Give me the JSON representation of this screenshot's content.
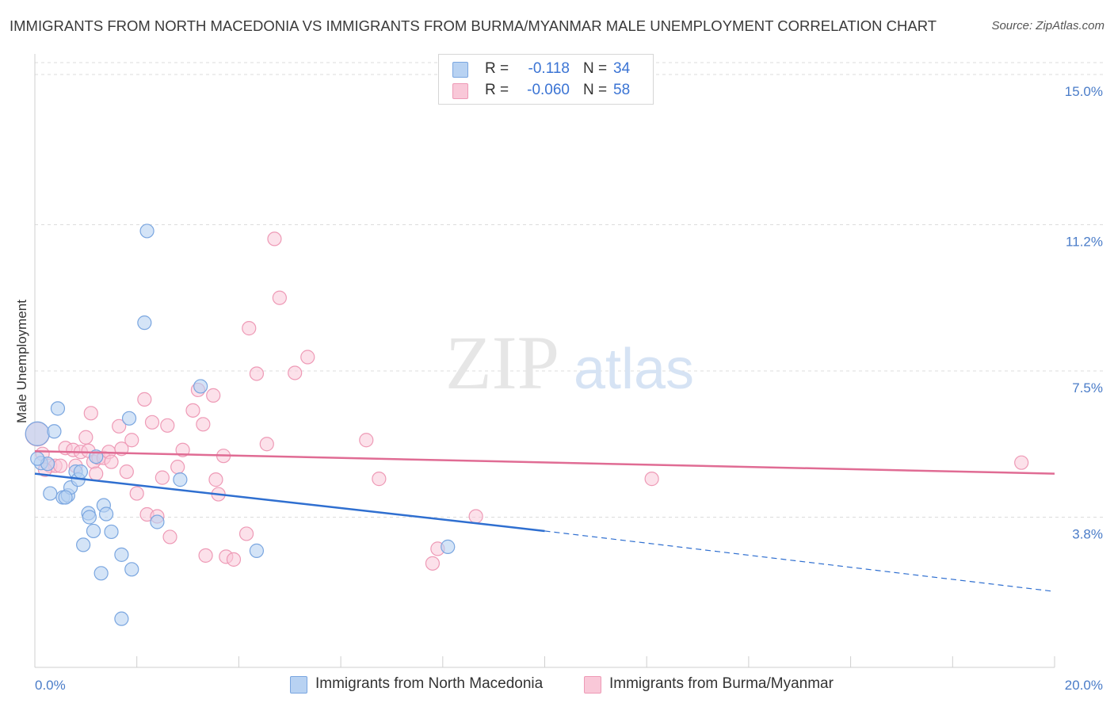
{
  "title": "IMMIGRANTS FROM NORTH MACEDONIA VS IMMIGRANTS FROM BURMA/MYANMAR MALE UNEMPLOYMENT CORRELATION CHART",
  "source": "Source: ZipAtlas.com",
  "watermark": {
    "zip": "ZIP",
    "atlas": "atlas"
  },
  "colors": {
    "blue_fill": "#b8d2f2",
    "blue_stroke": "#7aa6e0",
    "blue_line": "#2f6fd0",
    "pink_fill": "#f9c8d8",
    "pink_stroke": "#ee9ab6",
    "pink_line": "#e06c94",
    "grid": "#dcdcdc",
    "tick_text": "#4a7cc8"
  },
  "legend": {
    "rows": [
      {
        "r_label": "R =",
        "r_value": "-0.118",
        "n_label": "N =",
        "n_value": "34",
        "color": "#b8d2f2",
        "border": "#7aa6e0"
      },
      {
        "r_label": "R =",
        "r_value": "-0.060",
        "n_label": "N =",
        "n_value": "58",
        "color": "#f9c8d8",
        "border": "#ee9ab6"
      }
    ]
  },
  "bottom_legend": [
    {
      "label": "Immigrants from North Macedonia",
      "color": "#b8d2f2",
      "border": "#7aa6e0"
    },
    {
      "label": "Immigrants from Burma/Myanmar",
      "color": "#f9c8d8",
      "border": "#ee9ab6"
    }
  ],
  "chart_data": {
    "type": "scatter",
    "title": "IMMIGRANTS FROM NORTH MACEDONIA VS IMMIGRANTS FROM BURMA/MYANMAR MALE UNEMPLOYMENT CORRELATION CHART",
    "xlabel": "",
    "ylabel": "Male Unemployment",
    "xlim": [
      0,
      20
    ],
    "ylim": [
      0,
      15.38
    ],
    "x_tick_labels": {
      "min": "0.0%",
      "max": "20.0%"
    },
    "y_ticks": [
      {
        "value": 3.8,
        "label": "3.8%"
      },
      {
        "value": 7.5,
        "label": "7.5%"
      },
      {
        "value": 11.2,
        "label": "11.2%"
      },
      {
        "value": 15.0,
        "label": "15.0%"
      }
    ],
    "grid": true,
    "legend_position": "top-center",
    "series": [
      {
        "name": "Immigrants from North Macedonia",
        "color": "blue",
        "points": [
          [
            0.05,
            5.91
          ],
          [
            0.12,
            5.17
          ],
          [
            0.25,
            5.15
          ],
          [
            0.38,
            5.97
          ],
          [
            0.45,
            6.55
          ],
          [
            0.3,
            4.4
          ],
          [
            0.55,
            4.3
          ],
          [
            0.65,
            4.35
          ],
          [
            0.7,
            4.55
          ],
          [
            0.8,
            4.95
          ],
          [
            0.85,
            4.75
          ],
          [
            0.9,
            4.95
          ],
          [
            0.95,
            3.1
          ],
          [
            1.05,
            3.9
          ],
          [
            1.07,
            3.8
          ],
          [
            1.15,
            3.45
          ],
          [
            1.2,
            5.33
          ],
          [
            1.35,
            4.1
          ],
          [
            1.4,
            3.88
          ],
          [
            1.5,
            3.43
          ],
          [
            1.3,
            2.38
          ],
          [
            1.7,
            2.85
          ],
          [
            1.9,
            2.48
          ],
          [
            1.85,
            6.3
          ],
          [
            2.15,
            8.72
          ],
          [
            2.2,
            11.04
          ],
          [
            2.4,
            3.68
          ],
          [
            2.85,
            4.75
          ],
          [
            3.25,
            7.11
          ],
          [
            4.35,
            2.95
          ],
          [
            8.1,
            3.05
          ],
          [
            1.7,
            1.23
          ],
          [
            0.05,
            5.28
          ],
          [
            0.6,
            4.3
          ]
        ],
        "trend": {
          "x0": 0,
          "y0": 4.9,
          "x1": 10,
          "y1": 3.45,
          "dashed_to_x": 20,
          "dashed_to_y": 1.92
        }
      },
      {
        "name": "Immigrants from Burma/Myanmar",
        "color": "pink",
        "points": [
          [
            0.05,
            5.9
          ],
          [
            0.15,
            5.4
          ],
          [
            0.3,
            5.1
          ],
          [
            0.4,
            5.1
          ],
          [
            0.5,
            5.1
          ],
          [
            0.6,
            5.55
          ],
          [
            0.75,
            5.5
          ],
          [
            0.8,
            5.1
          ],
          [
            0.9,
            5.45
          ],
          [
            1.0,
            5.82
          ],
          [
            1.05,
            5.48
          ],
          [
            1.1,
            6.43
          ],
          [
            1.15,
            5.2
          ],
          [
            1.2,
            4.9
          ],
          [
            1.25,
            5.3
          ],
          [
            1.35,
            5.3
          ],
          [
            1.45,
            5.45
          ],
          [
            1.5,
            5.2
          ],
          [
            1.65,
            6.1
          ],
          [
            1.7,
            5.53
          ],
          [
            1.8,
            4.95
          ],
          [
            1.9,
            5.75
          ],
          [
            2.0,
            4.4
          ],
          [
            2.15,
            6.78
          ],
          [
            2.2,
            3.87
          ],
          [
            2.3,
            6.2
          ],
          [
            2.4,
            3.82
          ],
          [
            2.5,
            4.8
          ],
          [
            2.6,
            6.12
          ],
          [
            2.65,
            3.3
          ],
          [
            2.8,
            5.07
          ],
          [
            2.9,
            5.5
          ],
          [
            3.1,
            6.5
          ],
          [
            3.2,
            7.02
          ],
          [
            3.3,
            6.15
          ],
          [
            3.35,
            2.83
          ],
          [
            3.5,
            6.88
          ],
          [
            3.55,
            4.75
          ],
          [
            3.6,
            4.38
          ],
          [
            3.7,
            5.35
          ],
          [
            3.75,
            2.8
          ],
          [
            3.9,
            2.73
          ],
          [
            4.2,
            8.58
          ],
          [
            4.35,
            7.43
          ],
          [
            4.55,
            5.65
          ],
          [
            4.7,
            10.84
          ],
          [
            4.8,
            9.35
          ],
          [
            5.1,
            7.45
          ],
          [
            5.35,
            7.85
          ],
          [
            4.15,
            3.38
          ],
          [
            6.5,
            5.75
          ],
          [
            6.75,
            4.77
          ],
          [
            7.8,
            2.63
          ],
          [
            7.9,
            3.0
          ],
          [
            8.65,
            3.82
          ],
          [
            12.1,
            4.77
          ],
          [
            19.35,
            5.18
          ],
          [
            0.2,
            5.0
          ]
        ],
        "trend": {
          "x0": 0,
          "y0": 5.47,
          "x1": 20,
          "y1": 4.9
        }
      }
    ]
  }
}
